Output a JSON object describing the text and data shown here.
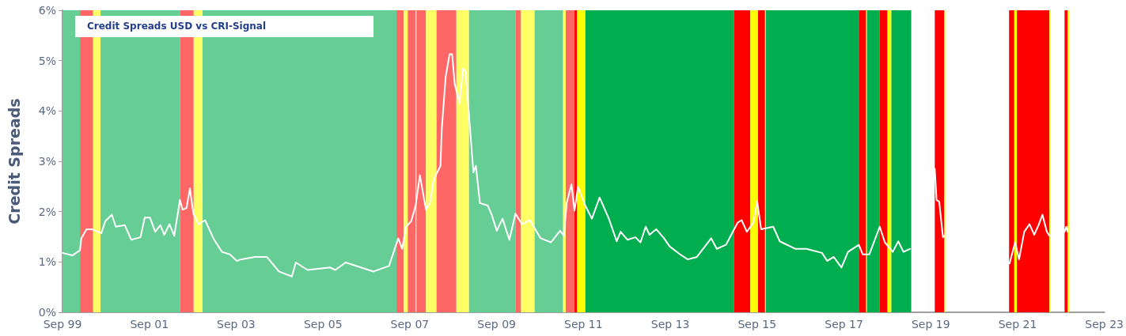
{
  "chart_data": {
    "type": "line",
    "title": "Credit Spreads USD vs CRI-Signal",
    "ylabel": "Credit Spreads",
    "marker": "none",
    "line_style": "solid",
    "xlim": [
      "1999-09-01",
      "2023-09-01"
    ],
    "xticks": [
      {
        "value": "1999-09-01",
        "label": "Sep 99"
      },
      {
        "value": "2001-09-01",
        "label": "Sep 01"
      },
      {
        "value": "2003-09-01",
        "label": "Sep 03"
      },
      {
        "value": "2005-09-01",
        "label": "Sep 05"
      },
      {
        "value": "2007-09-01",
        "label": "Sep 07"
      },
      {
        "value": "2009-09-01",
        "label": "Sep 09"
      },
      {
        "value": "2011-09-01",
        "label": "Sep 11"
      },
      {
        "value": "2013-09-01",
        "label": "Sep 13"
      },
      {
        "value": "2015-09-01",
        "label": "Sep 15"
      },
      {
        "value": "2017-09-01",
        "label": "Sep 17"
      },
      {
        "value": "2019-09-01",
        "label": "Sep 19"
      },
      {
        "value": "2021-09-01",
        "label": "Sep 21"
      },
      {
        "value": "2023-09-01",
        "label": "Sep 23"
      }
    ],
    "ylim": [
      0,
      6
    ],
    "yticks": [
      {
        "value": 0,
        "label": "0%"
      },
      {
        "value": 1,
        "label": "1%"
      },
      {
        "value": 2,
        "label": "2%"
      },
      {
        "value": 3,
        "label": "3%"
      },
      {
        "value": 4,
        "label": "4%"
      },
      {
        "value": 5,
        "label": "5%"
      },
      {
        "value": 6,
        "label": "6%"
      }
    ],
    "series": [
      {
        "color": "#ffffff",
        "x": [
          "1999-09-01",
          "1999-11-22",
          "2000-01-26",
          "2000-02-06",
          "2000-03-21",
          "2000-05-05",
          "2000-07-24",
          "2000-08-26",
          "2000-10-20",
          "2000-11-22",
          "2001-02-06",
          "2001-04-02",
          "2001-06-18",
          "2001-07-24",
          "2001-09-06",
          "2001-10-20",
          "2001-12-02",
          "2002-01-04",
          "2002-02-17",
          "2002-03-29",
          "2002-05-16",
          "2002-06-07",
          "2002-07-10",
          "2002-08-08",
          "2002-09-06",
          "2002-10-20",
          "2002-12-13",
          "2003-02-28",
          "2003-05-05",
          "2003-07-10",
          "2003-09-06",
          "2003-10-09",
          "2004-02-06",
          "2004-05-16",
          "2004-08-26",
          "2004-12-13",
          "2005-01-15",
          "2005-04-24",
          "2005-10-31",
          "2005-12-13",
          "2006-03-10",
          "2006-10-31",
          "2007-03-10",
          "2007-05-27",
          "2007-06-29",
          "2007-08-01",
          "2007-09-13",
          "2007-10-20",
          "2007-11-25",
          "2008-01-15",
          "2008-02-17",
          "2008-03-21",
          "2008-05-16",
          "2008-05-27",
          "2008-06-29",
          "2008-08-01",
          "2008-08-22",
          "2008-09-13",
          "2008-10-23",
          "2008-11-22",
          "2008-12-13",
          "2009-01-15",
          "2009-02-17",
          "2009-03-10",
          "2009-04-13",
          "2009-06-18",
          "2009-07-21",
          "2009-09-02",
          "2009-10-20",
          "2009-12-17",
          "2010-02-06",
          "2010-04-02",
          "2010-06-07",
          "2010-09-06",
          "2010-12-02",
          "2011-02-17",
          "2011-03-21",
          "2011-04-13",
          "2011-05-23",
          "2011-06-18",
          "2011-07-17",
          "2011-09-17",
          "2011-11-11",
          "2012-01-15",
          "2012-04-02",
          "2012-06-07",
          "2012-07-10",
          "2012-09-06",
          "2012-11-11",
          "2012-12-24",
          "2013-02-06",
          "2013-03-10",
          "2013-05-05",
          "2013-07-10",
          "2013-08-26",
          "2013-11-22",
          "2014-01-26",
          "2014-04-13",
          "2014-08-11",
          "2014-09-27",
          "2014-12-13",
          "2015-03-21",
          "2015-04-24",
          "2015-06-07",
          "2015-08-01",
          "2015-09-02",
          "2015-10-05",
          "2016-01-15",
          "2016-03-10",
          "2016-07-21",
          "2016-10-20",
          "2017-02-28",
          "2017-04-13",
          "2017-06-07",
          "2017-08-11",
          "2017-10-05",
          "2018-01-04",
          "2018-02-06",
          "2018-04-02",
          "2018-06-29",
          "2018-08-11",
          "2018-10-16",
          "2018-12-02",
          "2019-01-15",
          "2019-03-10",
          "2019-07-01",
          "2019-10-05",
          "2019-10-20",
          "2019-11-11",
          "2019-12-13",
          "2019-12-24",
          "2020-09-13",
          "2021-06-25",
          "2021-08-11",
          "2021-09-13",
          "2021-10-27",
          "2021-12-10",
          "2022-01-19",
          "2022-02-24",
          "2022-03-29",
          "2022-05-05",
          "2022-05-27",
          "2022-08-08",
          "2022-10-01",
          "2022-10-16",
          "2022-10-27"
        ],
        "values": [
          1.18,
          1.13,
          1.23,
          1.47,
          1.65,
          1.65,
          1.57,
          1.81,
          1.94,
          1.7,
          1.73,
          1.44,
          1.49,
          1.88,
          1.88,
          1.6,
          1.73,
          1.54,
          1.75,
          1.52,
          2.23,
          2.04,
          2.07,
          2.46,
          1.96,
          1.75,
          1.83,
          1.44,
          1.2,
          1.15,
          1.02,
          1.05,
          1.1,
          1.1,
          0.81,
          0.71,
          0.99,
          0.84,
          0.89,
          0.84,
          0.99,
          0.81,
          0.92,
          1.47,
          1.26,
          1.7,
          1.81,
          2.12,
          2.72,
          2.04,
          2.17,
          2.64,
          2.91,
          3.64,
          4.68,
          5.13,
          5.13,
          4.53,
          4.16,
          4.84,
          4.79,
          3.8,
          2.78,
          2.91,
          2.17,
          2.12,
          1.94,
          1.62,
          1.86,
          1.44,
          1.96,
          1.75,
          1.83,
          1.47,
          1.39,
          1.62,
          1.52,
          2.17,
          2.54,
          2.02,
          2.49,
          2.12,
          1.86,
          2.28,
          1.86,
          1.41,
          1.6,
          1.44,
          1.49,
          1.39,
          1.7,
          1.54,
          1.65,
          1.47,
          1.31,
          1.15,
          1.05,
          1.1,
          1.47,
          1.26,
          1.34,
          1.78,
          1.83,
          1.6,
          1.78,
          2.2,
          1.65,
          1.7,
          1.41,
          1.26,
          1.26,
          1.18,
          1.02,
          1.1,
          0.89,
          1.2,
          1.34,
          1.15,
          1.15,
          1.7,
          1.39,
          1.2,
          1.41,
          1.2,
          1.26,
          null,
          2.85,
          2.23,
          2.2,
          1.49,
          1.52,
          null,
          0.97,
          1.39,
          1.05,
          1.6,
          1.75,
          1.54,
          1.73,
          1.94,
          1.6,
          1.52,
          null,
          1.6,
          1.7,
          1.6
        ]
      }
    ],
    "bands": [
      {
        "axis": "x",
        "from": "1999-09-01",
        "to": "2000-01-26",
        "color": "#66cd95"
      },
      {
        "axis": "x",
        "from": "2000-01-26",
        "to": "2000-05-16",
        "color": "#ff6666"
      },
      {
        "axis": "x",
        "from": "2000-05-16",
        "to": "2000-07-17",
        "color": "#ffff66"
      },
      {
        "axis": "x",
        "from": "2000-07-17",
        "to": "2002-05-16",
        "color": "#66cd95"
      },
      {
        "axis": "x",
        "from": "2002-05-16",
        "to": "2002-09-09",
        "color": "#ff6666"
      },
      {
        "axis": "x",
        "from": "2002-09-09",
        "to": "2002-11-22",
        "color": "#ffff66"
      },
      {
        "axis": "x",
        "from": "2002-11-22",
        "to": "2007-05-12",
        "color": "#66cd95"
      },
      {
        "axis": "x",
        "from": "2007-05-12",
        "to": "2007-07-13",
        "color": "#ff6666"
      },
      {
        "axis": "x",
        "from": "2007-07-13",
        "to": "2007-08-15",
        "color": "#ffff66"
      },
      {
        "axis": "x",
        "from": "2007-08-15",
        "to": "2007-10-20",
        "color": "#ff6666"
      },
      {
        "axis": "x",
        "from": "2007-10-20",
        "to": "2007-10-27",
        "color": "#ffff66"
      },
      {
        "axis": "x",
        "from": "2007-10-27",
        "to": "2008-01-15",
        "color": "#ff6666"
      },
      {
        "axis": "x",
        "from": "2008-01-15",
        "to": "2008-04-13",
        "color": "#ffff66"
      },
      {
        "axis": "x",
        "from": "2008-04-13",
        "to": "2008-09-27",
        "color": "#ff6666"
      },
      {
        "axis": "x",
        "from": "2008-09-27",
        "to": "2009-01-11",
        "color": "#ffff66"
      },
      {
        "axis": "x",
        "from": "2009-01-11",
        "to": "2010-02-06",
        "color": "#66cd95"
      },
      {
        "axis": "x",
        "from": "2010-02-06",
        "to": "2010-03-25",
        "color": "#ff6666"
      },
      {
        "axis": "x",
        "from": "2010-03-25",
        "to": "2010-07-17",
        "color": "#ffff66"
      },
      {
        "axis": "x",
        "from": "2010-07-17",
        "to": "2011-03-14",
        "color": "#66cd95"
      },
      {
        "axis": "x",
        "from": "2011-03-14",
        "to": "2011-04-05",
        "color": "#ffff66"
      },
      {
        "axis": "x",
        "from": "2011-04-05",
        "to": "2011-06-18",
        "color": "#ff6666"
      },
      {
        "axis": "x",
        "from": "2011-06-18",
        "to": "2011-07-10",
        "color": "#ff0000"
      },
      {
        "axis": "x",
        "from": "2011-07-10",
        "to": "2011-09-17",
        "color": "#ffff00"
      },
      {
        "axis": "x",
        "from": "2011-09-17",
        "to": "2015-02-20",
        "color": "#00ad4f"
      },
      {
        "axis": "x",
        "from": "2015-02-20",
        "to": "2015-07-06",
        "color": "#ff0000"
      },
      {
        "axis": "x",
        "from": "2015-07-06",
        "to": "2015-09-09",
        "color": "#ffff00"
      },
      {
        "axis": "x",
        "from": "2015-09-09",
        "to": "2015-11-07",
        "color": "#ff0000"
      },
      {
        "axis": "x",
        "from": "2015-11-07",
        "to": "2015-11-14",
        "color": "#ffff00"
      },
      {
        "axis": "x",
        "from": "2015-11-14",
        "to": "2018-01-08",
        "color": "#00ad4f"
      },
      {
        "axis": "x",
        "from": "2018-01-08",
        "to": "2018-03-07",
        "color": "#ff0000"
      },
      {
        "axis": "x",
        "from": "2018-03-07",
        "to": "2018-03-14",
        "color": "#ffff00"
      },
      {
        "axis": "x",
        "from": "2018-03-14",
        "to": "2018-06-29",
        "color": "#00ad4f"
      },
      {
        "axis": "x",
        "from": "2018-06-29",
        "to": "2018-09-02",
        "color": "#ff0000"
      },
      {
        "axis": "x",
        "from": "2018-09-02",
        "to": "2018-10-05",
        "color": "#ffff00"
      },
      {
        "axis": "x",
        "from": "2018-10-05",
        "to": "2019-03-21",
        "color": "#00ad4f"
      },
      {
        "axis": "x",
        "from": "2019-10-05",
        "to": "2019-12-24",
        "color": "#ff0000"
      },
      {
        "axis": "x",
        "from": "2019-12-24",
        "to": "2020-01-01",
        "color": "#ffff00"
      },
      {
        "axis": "x",
        "from": "2021-06-21",
        "to": "2021-08-04",
        "color": "#ff0000"
      },
      {
        "axis": "x",
        "from": "2021-08-04",
        "to": "2021-08-26",
        "color": "#ffff00"
      },
      {
        "axis": "x",
        "from": "2021-08-26",
        "to": "2022-05-27",
        "color": "#ff0000"
      },
      {
        "axis": "x",
        "from": "2022-05-27",
        "to": "2022-06-07",
        "color": "#ffff00"
      },
      {
        "axis": "x",
        "from": "2022-10-01",
        "to": "2022-10-27",
        "color": "#ff0000"
      },
      {
        "axis": "x",
        "from": "2022-10-27",
        "to": "2022-11-07",
        "color": "#ffff00"
      }
    ]
  }
}
